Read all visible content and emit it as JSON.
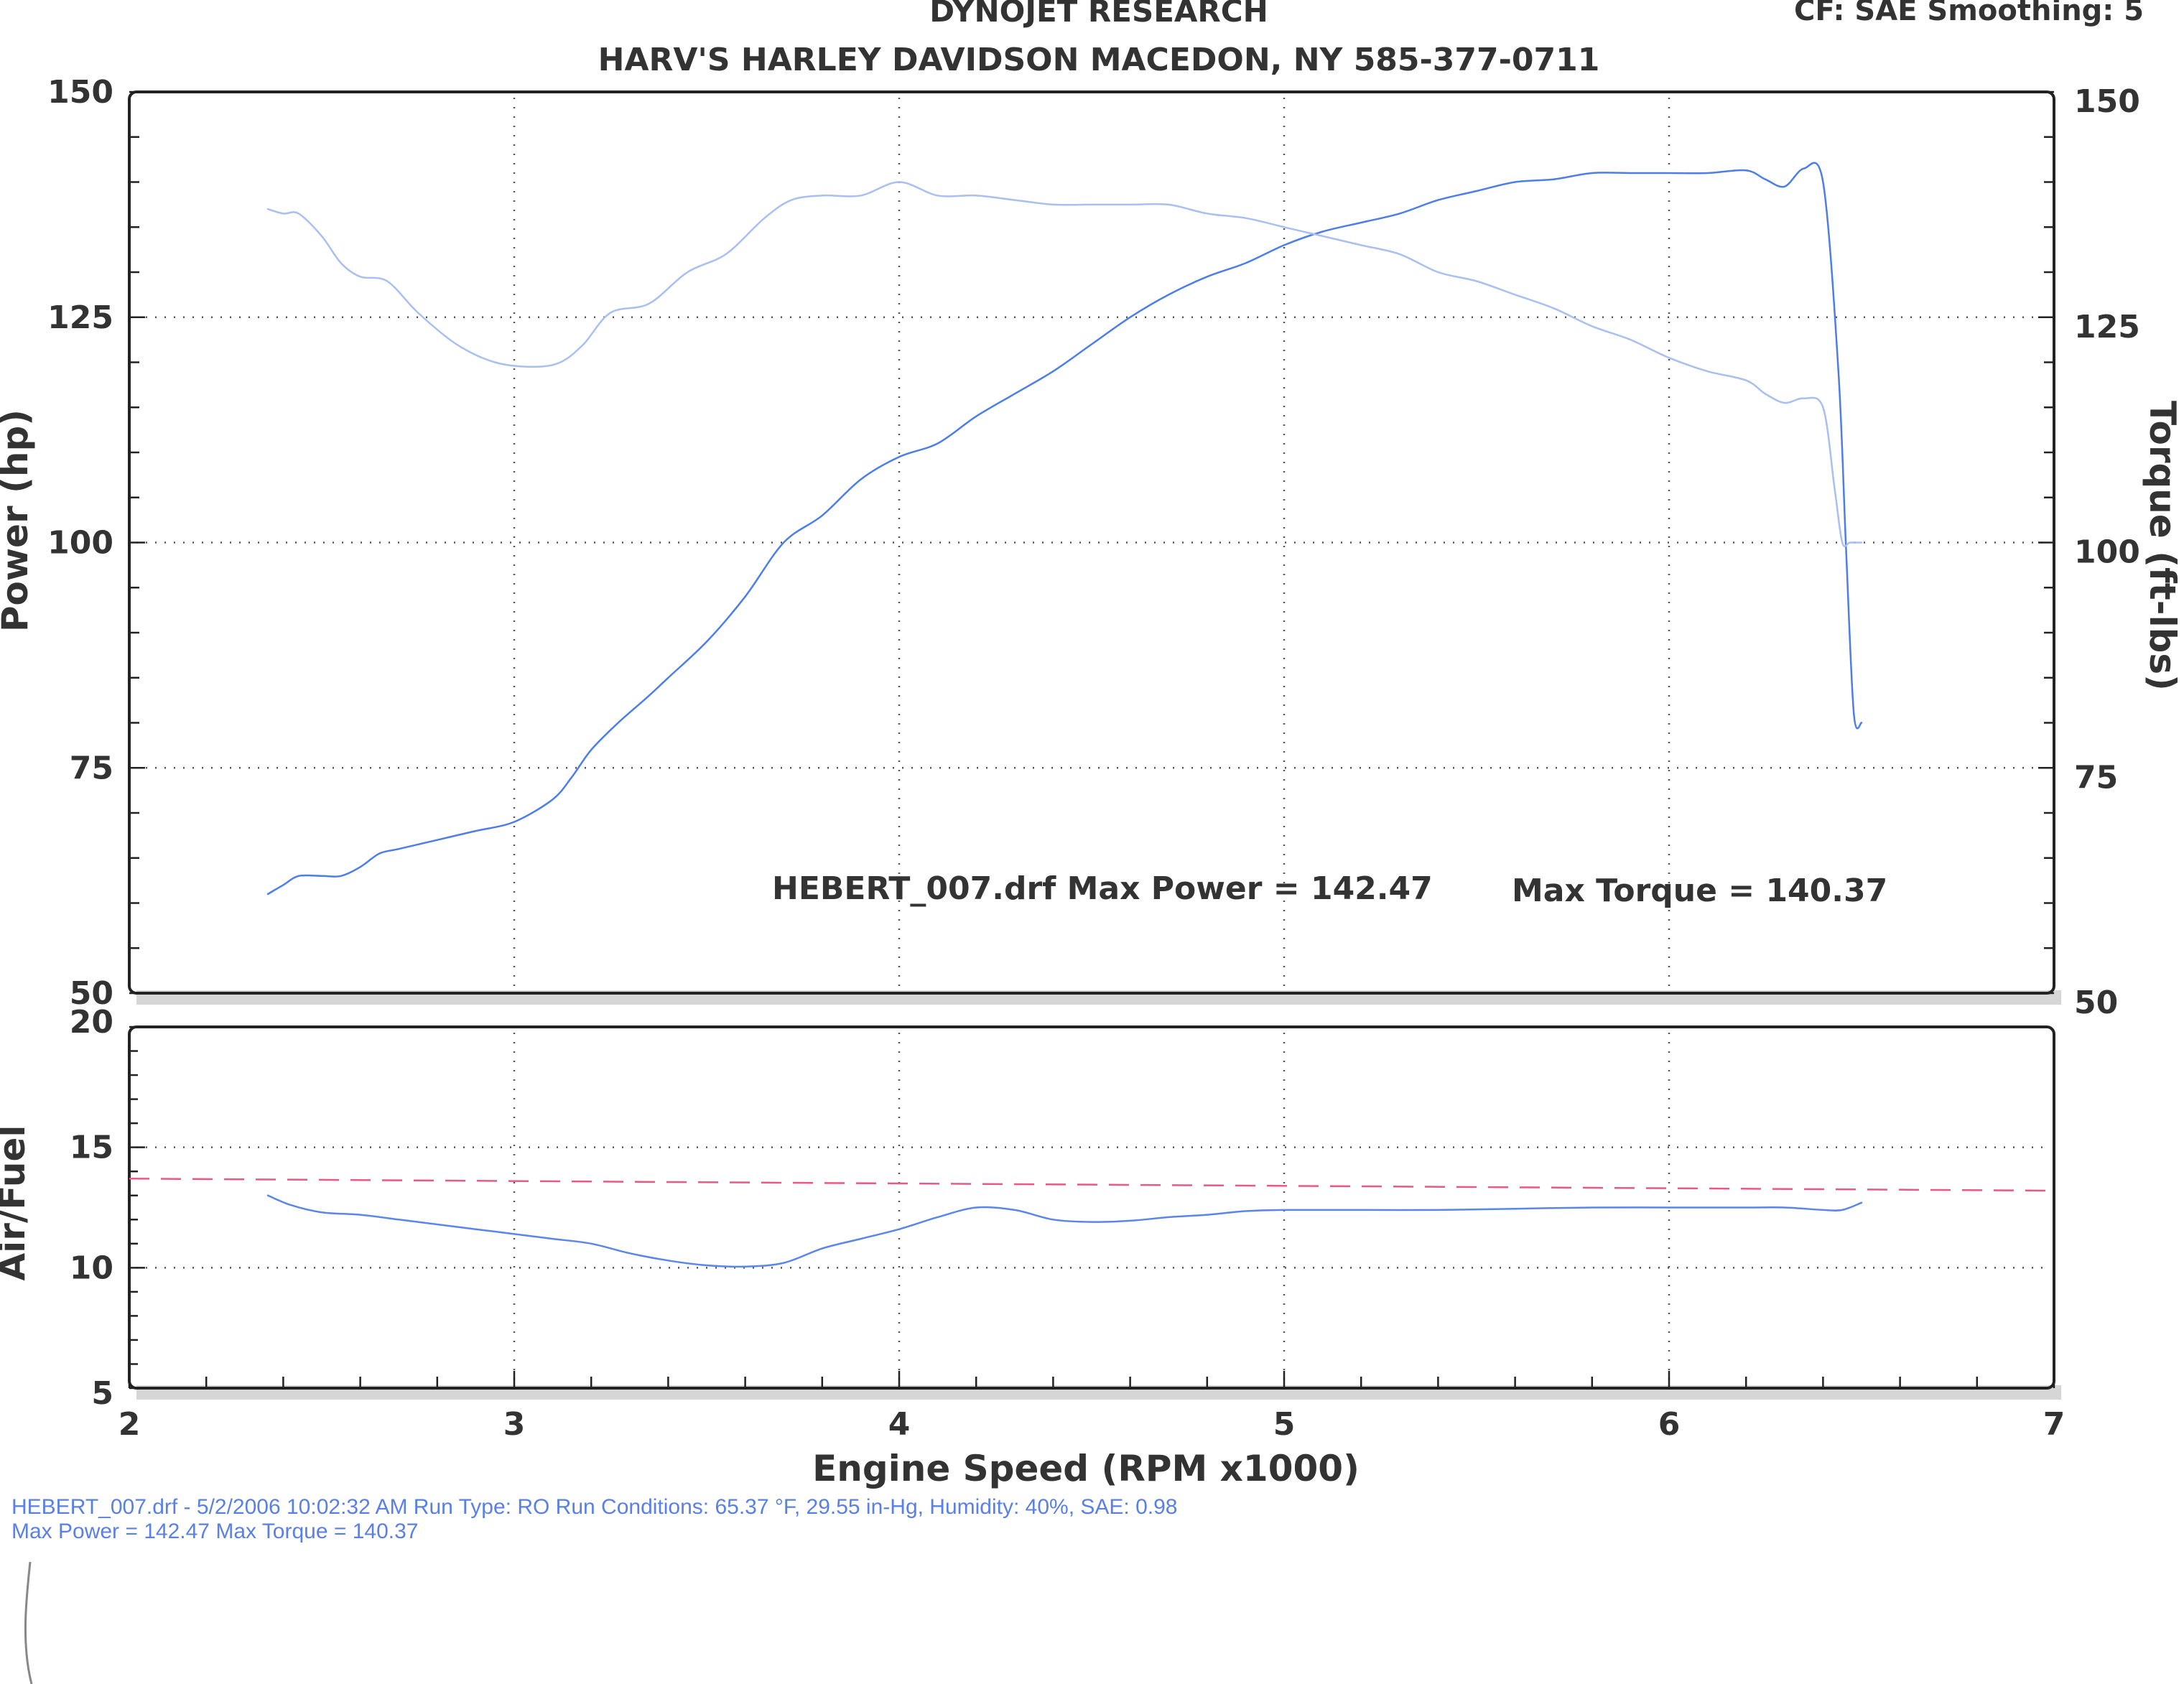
{
  "header": {
    "line1": "DYNOJET RESEARCH",
    "line2": "HARV'S HARLEY DAVIDSON MACEDON, NY 585-377-0711",
    "corner": "CF: SAE  Smoothing: 5"
  },
  "annotation": {
    "max_power": "HEBERT_007.drf Max Power = 142.47",
    "max_torque": "Max Torque = 140.37"
  },
  "footer": {
    "line1": "HEBERT_007.drf - 5/2/2006 10:02:32 AM  Run Type: RO  Run Conditions: 65.37 °F, 29.55 in-Hg,  Humidity:  40%, SAE: 0.98",
    "line2": "Max Power = 142.47  Max Torque = 140.37"
  },
  "colors": {
    "power": "#4d7ee8",
    "torque": "#a9bff0",
    "afr": "#5a86ea",
    "afr_target": "#e85a85",
    "text": "#333333",
    "footer_text": "#5a80e6"
  },
  "chart_data": [
    {
      "type": "line",
      "title": "",
      "xlabel": "Engine Speed (RPM x1000)",
      "ylabel": "Power (hp)",
      "y2label": "Torque (ft-lbs)",
      "xlim": [
        2,
        7
      ],
      "ylim": [
        50,
        150
      ],
      "y2lim": [
        50,
        150
      ],
      "x_ticks": [
        "2",
        "3",
        "4",
        "5",
        "6",
        "7"
      ],
      "y_ticks": [
        "50",
        "75",
        "100",
        "125",
        "150"
      ],
      "y2_ticks": [
        "50",
        "75",
        "100",
        "125",
        "150"
      ],
      "grid": true,
      "series": [
        {
          "name": "",
          "axis": "left",
          "x": [
            2.36,
            2.4,
            2.44,
            2.5,
            2.55,
            2.6,
            2.65,
            2.7,
            2.8,
            2.9,
            3.0,
            3.1,
            3.15,
            3.2,
            3.27,
            3.35,
            3.4,
            3.5,
            3.6,
            3.7,
            3.8,
            3.9,
            4.0,
            4.1,
            4.2,
            4.3,
            4.4,
            4.5,
            4.6,
            4.7,
            4.8,
            4.9,
            5.0,
            5.1,
            5.2,
            5.3,
            5.4,
            5.5,
            5.6,
            5.7,
            5.8,
            5.9,
            6.0,
            6.1,
            6.2,
            6.25,
            6.3,
            6.35,
            6.4,
            6.44,
            6.46,
            6.48,
            6.5
          ],
          "values": [
            61,
            62,
            63,
            63,
            63,
            64,
            65.5,
            66,
            67,
            68,
            69,
            71.5,
            74,
            77,
            80,
            83,
            85,
            89,
            94,
            100,
            103,
            107,
            109.5,
            111,
            114,
            116.5,
            119,
            122,
            125,
            127.5,
            129.5,
            131,
            133,
            134.5,
            135.5,
            136.5,
            138,
            139,
            140,
            140.3,
            141,
            141,
            141,
            141,
            141.3,
            140.3,
            139.5,
            141.5,
            140,
            119,
            99,
            81,
            80
          ]
        },
        {
          "name": "",
          "axis": "right",
          "x": [
            2.36,
            2.4,
            2.44,
            2.5,
            2.55,
            2.6,
            2.67,
            2.75,
            2.85,
            2.95,
            3.05,
            3.12,
            3.18,
            3.25,
            3.35,
            3.45,
            3.55,
            3.65,
            3.72,
            3.8,
            3.9,
            4.0,
            4.1,
            4.2,
            4.3,
            4.4,
            4.5,
            4.6,
            4.7,
            4.8,
            4.9,
            5.0,
            5.1,
            5.2,
            5.3,
            5.4,
            5.5,
            5.6,
            5.7,
            5.8,
            5.9,
            6.0,
            6.1,
            6.2,
            6.25,
            6.3,
            6.35,
            6.4,
            6.43,
            6.45,
            6.47,
            6.5
          ],
          "values": [
            137,
            136.5,
            136.5,
            134,
            131,
            129.5,
            129,
            125.5,
            122,
            120,
            119.5,
            120,
            122,
            125.5,
            126.5,
            130,
            132,
            136,
            138,
            138.5,
            138.5,
            140,
            138.5,
            138.5,
            138,
            137.5,
            137.5,
            137.5,
            137.5,
            136.5,
            136,
            135,
            134,
            133,
            132,
            130,
            129,
            127.5,
            126,
            124,
            122.5,
            120.5,
            119,
            118,
            116.5,
            115.5,
            116,
            115,
            106,
            100,
            100,
            100
          ]
        }
      ]
    },
    {
      "type": "line",
      "title": "",
      "xlabel": "Engine Speed (RPM x1000)",
      "ylabel": "Air/Fuel",
      "xlim": [
        2,
        7
      ],
      "ylim": [
        5,
        20
      ],
      "x_ticks": [
        "2",
        "3",
        "4",
        "5",
        "6",
        "7"
      ],
      "y_ticks": [
        "5",
        "10",
        "15",
        "20"
      ],
      "grid": true,
      "series": [
        {
          "name": "",
          "x": [
            2.36,
            2.42,
            2.5,
            2.6,
            2.7,
            2.8,
            2.9,
            3.0,
            3.1,
            3.2,
            3.3,
            3.4,
            3.5,
            3.6,
            3.7,
            3.8,
            3.9,
            4.0,
            4.1,
            4.2,
            4.3,
            4.4,
            4.5,
            4.6,
            4.7,
            4.8,
            4.9,
            5.0,
            5.2,
            5.4,
            5.6,
            5.8,
            6.0,
            6.2,
            6.3,
            6.4,
            6.45,
            6.5
          ],
          "values": [
            13.0,
            12.6,
            12.3,
            12.2,
            12.0,
            11.8,
            11.6,
            11.4,
            11.2,
            11.0,
            10.6,
            10.3,
            10.1,
            10.05,
            10.2,
            10.8,
            11.2,
            11.6,
            12.1,
            12.5,
            12.4,
            12.0,
            11.9,
            11.95,
            12.1,
            12.2,
            12.35,
            12.4,
            12.4,
            12.4,
            12.45,
            12.5,
            12.5,
            12.5,
            12.5,
            12.4,
            12.4,
            12.7
          ]
        },
        {
          "name": "",
          "style": "dashed",
          "x": [
            2.0,
            7.0
          ],
          "values": [
            13.7,
            13.2
          ]
        }
      ]
    }
  ]
}
